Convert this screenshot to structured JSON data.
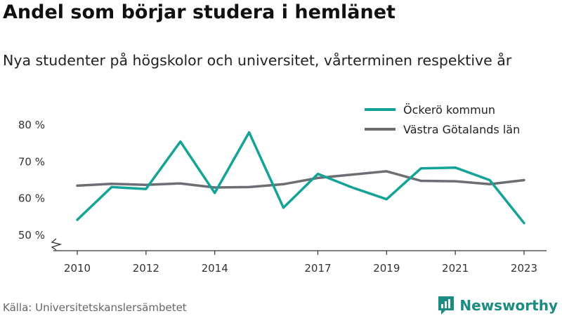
{
  "title": "Andel som börjar studera i hemlänet",
  "subtitle": "Nya studenter på högskolor och universitet, vårterminen respektive år",
  "source": "Källa: Universitetskanslersämbetet",
  "brand": {
    "name": "Newsworthy",
    "logo_icon": "newsworthy-logo-icon",
    "color": "#1b8c83"
  },
  "chart_data": {
    "type": "line",
    "x": [
      2010,
      2011,
      2012,
      2013,
      2014,
      2015,
      2016,
      2017,
      2018,
      2019,
      2020,
      2021,
      2022,
      2023
    ],
    "x_tick_labels": [
      "2010",
      "2012",
      "2014",
      "2017",
      "2019",
      "2021",
      "2023"
    ],
    "x_ticks": [
      2010,
      2012,
      2014,
      2017,
      2019,
      2021,
      2023
    ],
    "y_ticks": [
      50,
      60,
      70,
      80
    ],
    "y_tick_labels": [
      "50 %",
      "60 %",
      "70 %",
      "80 %"
    ],
    "ylim": [
      45,
      85
    ],
    "axis_break": true,
    "grid": false,
    "legend_position": "top-right",
    "series": [
      {
        "name": "Öckerö kommun",
        "color": "#13a397",
        "values": [
          54.2,
          63.1,
          62.6,
          75.5,
          61.5,
          78.0,
          57.5,
          66.7,
          63.0,
          59.8,
          68.2,
          68.4,
          65.0,
          53.3
        ]
      },
      {
        "name": "Västra Götalands län",
        "color": "#6d6e73",
        "values": [
          63.5,
          64.0,
          63.7,
          64.1,
          63.0,
          63.1,
          63.9,
          65.6,
          66.5,
          67.4,
          64.8,
          64.7,
          63.9,
          65.0
        ]
      }
    ]
  }
}
